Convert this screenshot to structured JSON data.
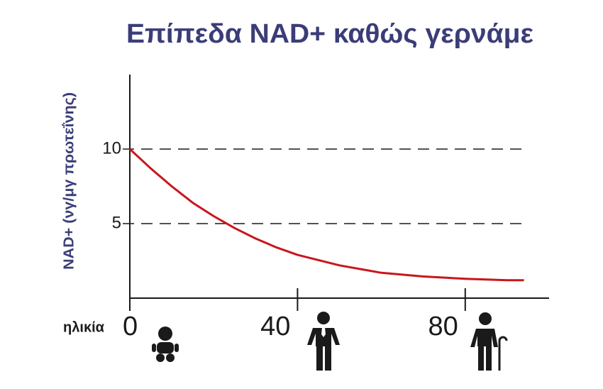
{
  "chart_data": {
    "type": "line",
    "title": "Επίπεδα NAD+ καθώς γερνάμε",
    "y_label": "NAD+ (νγ/μγ πρωτεΐνης)",
    "x_label": "ηλικία",
    "x": [
      0,
      5,
      10,
      15,
      20,
      25,
      30,
      35,
      40,
      50,
      60,
      70,
      80,
      90,
      94
    ],
    "series": [
      {
        "name": "NAD+",
        "color": "#c8161d",
        "values": [
          10,
          8.7,
          7.5,
          6.4,
          5.5,
          4.7,
          4.0,
          3.4,
          2.9,
          2.2,
          1.7,
          1.45,
          1.3,
          1.2,
          1.2
        ]
      }
    ],
    "xlim": [
      0,
      100
    ],
    "ylim": [
      0,
      15
    ],
    "xticks": [
      0,
      40,
      80
    ],
    "yticks": [
      5,
      10
    ],
    "grid": true
  }
}
